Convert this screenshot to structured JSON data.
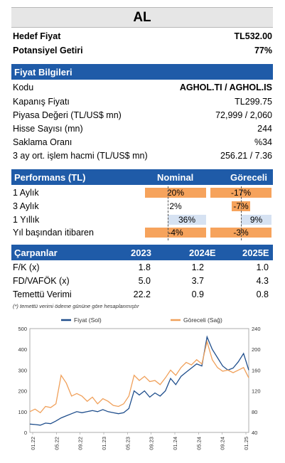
{
  "title": "AL",
  "summary": [
    {
      "label": "Hedef Fiyat",
      "value": "TL532.00"
    },
    {
      "label": "Potansiyel Getiri",
      "value": "77%"
    }
  ],
  "price_info": {
    "header": "Fiyat Bilgileri",
    "rows": [
      {
        "label": "Kodu",
        "value": "AGHOL.TI / AGHOL.IS"
      },
      {
        "label": "Kapanış Fiyatı",
        "value": "TL299.75"
      },
      {
        "label": "Piyasa Değeri (TL/US$ mn)",
        "value": "72,999 / 2,060"
      },
      {
        "label": "Hisse Sayısı (mn)",
        "value": "244"
      },
      {
        "label": "Saklama Oranı",
        "value": "%34"
      },
      {
        "label": "3 ay ort. işlem hacmi (TL/US$ mn)",
        "value": "256.21 / 7.36"
      }
    ]
  },
  "performance": {
    "header": "Performans (TL)",
    "col1": "Nominal",
    "col2": "Göreceli",
    "rows": [
      {
        "label": "1 Aylık",
        "nominal": "20%",
        "relative": "-17%",
        "nom_color": "orange",
        "rel_color": "orange"
      },
      {
        "label": "3 Aylık",
        "nominal": "2%",
        "relative": "-7%",
        "nom_color": "none",
        "rel_color": "orange"
      },
      {
        "label": "1 Yıllık",
        "nominal": "36%",
        "relative": "9%",
        "nom_color": "blue",
        "rel_color": "blue"
      },
      {
        "label": "Yıl başından itibaren",
        "nominal": "-4%",
        "relative": "-3%",
        "nom_color": "orange",
        "rel_color": "orange"
      }
    ]
  },
  "multiples": {
    "header": "Çarpanlar",
    "years": [
      "2023",
      "2024E",
      "2025E"
    ],
    "rows": [
      {
        "label": "F/K (x)",
        "values": [
          "1.8",
          "1.2",
          "1.0"
        ]
      },
      {
        "label": "FD/VAFÖK (x)",
        "values": [
          "5.0",
          "3.7",
          "4.3"
        ]
      },
      {
        "label": "Temettü Verimi",
        "values": [
          "22.2",
          "0.9",
          "0.8"
        ]
      }
    ]
  },
  "footnote": "(*) temettü verimi ödeme gününe göre hesaplanmıştır",
  "colors": {
    "header": "#1f5ba8",
    "orange": "#f6a35c",
    "blue": "#d6e2f2",
    "price_line": "#1f4e8c",
    "relative_line": "#f0a05a"
  },
  "chart_data": {
    "type": "line",
    "legend": [
      "Fiyat (Sol)",
      "Göreceli (Sağ)"
    ],
    "legend_position": "top",
    "x_ticks": [
      "01.22",
      "05.22",
      "09.22",
      "01.23",
      "05.23",
      "09.23",
      "01.24",
      "05.24",
      "09.24",
      "01.25"
    ],
    "y_left": {
      "ticks": [
        "0",
        "100",
        "200",
        "300",
        "400",
        "500"
      ],
      "range": [
        0,
        500
      ]
    },
    "y_right": {
      "ticks": [
        "40",
        "80",
        "120",
        "160",
        "200",
        "240"
      ],
      "range": [
        40,
        240
      ]
    },
    "series": [
      {
        "name": "Fiyat (Sol)",
        "axis": "left",
        "points": [
          [
            0,
            40
          ],
          [
            1,
            38
          ],
          [
            2,
            35
          ],
          [
            3,
            45
          ],
          [
            4,
            42
          ],
          [
            5,
            55
          ],
          [
            6,
            70
          ],
          [
            7,
            80
          ],
          [
            8,
            90
          ],
          [
            9,
            100
          ],
          [
            10,
            95
          ],
          [
            11,
            100
          ],
          [
            12,
            105
          ],
          [
            13,
            100
          ],
          [
            14,
            110
          ],
          [
            15,
            100
          ],
          [
            16,
            95
          ],
          [
            17,
            90
          ],
          [
            18,
            95
          ],
          [
            19,
            115
          ],
          [
            20,
            200
          ],
          [
            21,
            180
          ],
          [
            22,
            200
          ],
          [
            23,
            170
          ],
          [
            24,
            190
          ],
          [
            25,
            175
          ],
          [
            26,
            200
          ],
          [
            27,
            260
          ],
          [
            28,
            230
          ],
          [
            29,
            270
          ],
          [
            30,
            290
          ],
          [
            31,
            310
          ],
          [
            32,
            330
          ],
          [
            33,
            320
          ],
          [
            34,
            460
          ],
          [
            35,
            400
          ],
          [
            36,
            360
          ],
          [
            37,
            320
          ],
          [
            38,
            300
          ],
          [
            39,
            310
          ],
          [
            40,
            340
          ],
          [
            41,
            380
          ],
          [
            42,
            300
          ]
        ]
      },
      {
        "name": "Göreceli (Sağ)",
        "axis": "right",
        "points": [
          [
            0,
            80
          ],
          [
            1,
            85
          ],
          [
            2,
            78
          ],
          [
            3,
            90
          ],
          [
            4,
            88
          ],
          [
            5,
            95
          ],
          [
            6,
            150
          ],
          [
            7,
            135
          ],
          [
            8,
            110
          ],
          [
            9,
            115
          ],
          [
            10,
            110
          ],
          [
            11,
            100
          ],
          [
            12,
            108
          ],
          [
            13,
            95
          ],
          [
            14,
            105
          ],
          [
            15,
            100
          ],
          [
            16,
            92
          ],
          [
            17,
            90
          ],
          [
            18,
            95
          ],
          [
            19,
            110
          ],
          [
            20,
            150
          ],
          [
            21,
            140
          ],
          [
            22,
            148
          ],
          [
            23,
            138
          ],
          [
            24,
            140
          ],
          [
            25,
            132
          ],
          [
            26,
            145
          ],
          [
            27,
            160
          ],
          [
            28,
            150
          ],
          [
            29,
            165
          ],
          [
            30,
            175
          ],
          [
            31,
            170
          ],
          [
            32,
            180
          ],
          [
            33,
            172
          ],
          [
            34,
            215
          ],
          [
            35,
            180
          ],
          [
            36,
            165
          ],
          [
            37,
            158
          ],
          [
            38,
            160
          ],
          [
            39,
            155
          ],
          [
            40,
            160
          ],
          [
            41,
            165
          ],
          [
            42,
            145
          ]
        ]
      }
    ]
  }
}
